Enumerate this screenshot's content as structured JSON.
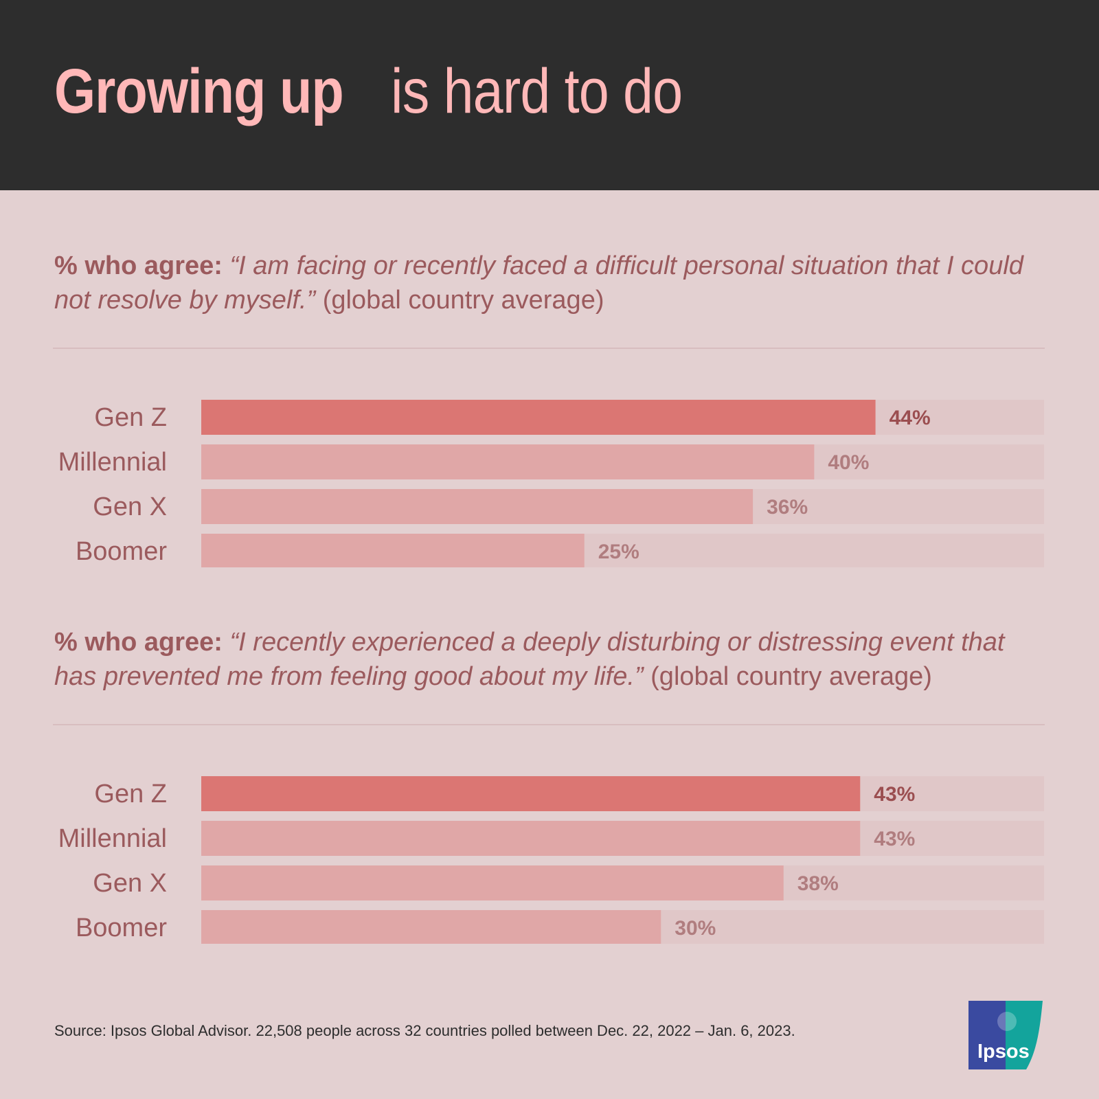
{
  "title": {
    "bold": "Growing up",
    "light": "is hard to do"
  },
  "colors": {
    "header_bg": "#2d2d2d",
    "page_bg": "#e3d0d1",
    "title": "#ffb8b8",
    "highlight_bar": "#db7673",
    "bar": "#e0a7a7",
    "track": "#e0c7c8",
    "label_text": "#9b5a5d",
    "value_text_highlight": "#9b4e50",
    "value_text": "#b07d7f"
  },
  "questions": [
    {
      "prefix": "% who agree:",
      "quote": "“I am facing or recently faced a difficult personal situation that I could not resolve by myself.”",
      "suffix": "(global country average)"
    },
    {
      "prefix": "% who agree:",
      "quote": "“I recently experienced a deeply disturbing or distressing event that has prevented me from feeling good about my life.”",
      "suffix": "(global country average)"
    }
  ],
  "chart_data": [
    {
      "type": "bar",
      "orientation": "horizontal",
      "categories": [
        "Gen Z",
        "Millennial",
        "Gen X",
        "Boomer"
      ],
      "values": [
        44,
        40,
        36,
        25
      ],
      "value_labels": [
        "44%",
        "40%",
        "36%",
        "25%"
      ],
      "highlight": "Gen Z",
      "xlim": [
        0,
        55
      ]
    },
    {
      "type": "bar",
      "orientation": "horizontal",
      "categories": [
        "Gen Z",
        "Millennial",
        "Gen X",
        "Boomer"
      ],
      "values": [
        43,
        43,
        38,
        30
      ],
      "value_labels": [
        "43%",
        "43%",
        "38%",
        "30%"
      ],
      "highlight": "Gen Z",
      "xlim": [
        0,
        55
      ]
    }
  ],
  "source": "Source: Ipsos Global Advisor. 22,508 people across 32 countries polled between Dec. 22, 2022 – Jan. 6, 2023.",
  "logo": {
    "text": "Ipsos",
    "color_left": "#3a4aa0",
    "color_right": "#13a49c"
  }
}
